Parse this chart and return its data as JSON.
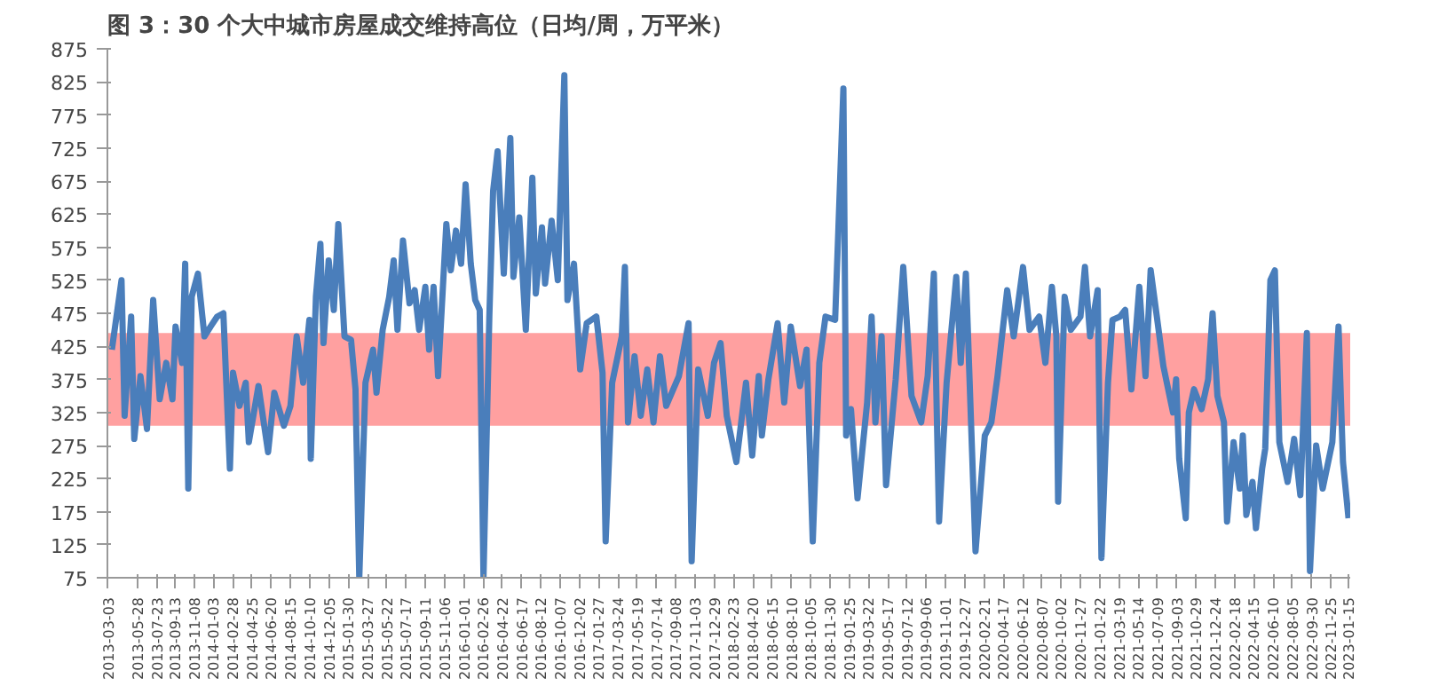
{
  "chart_data": {
    "type": "line",
    "title": "图 3：30 个大中城市房屋成交维持高位（日均/周，万平米）",
    "x": [
      "2013-03-14",
      "2013-04-11",
      "2013-04-20",
      "2013-05-09",
      "2013-05-18",
      "2013-06-05",
      "2013-06-24",
      "2013-07-12",
      "2013-07-31",
      "2013-08-19",
      "2013-09-06",
      "2013-09-15",
      "2013-10-04",
      "2013-10-13",
      "2013-10-22",
      "2013-11-01",
      "2013-11-19",
      "2013-12-08",
      "2013-12-26",
      "2014-01-14",
      "2014-02-01",
      "2014-02-20",
      "2014-03-01",
      "2014-03-20",
      "2014-04-07",
      "2014-04-16",
      "2014-05-14",
      "2014-06-11",
      "2014-06-29",
      "2014-07-27",
      "2014-08-15",
      "2014-09-02",
      "2014-09-21",
      "2014-10-09",
      "2014-10-13",
      "2014-10-28",
      "2014-11-10",
      "2014-11-19",
      "2014-12-04",
      "2014-12-19",
      "2015-01-01",
      "2015-01-19",
      "2015-02-07",
      "2015-02-20",
      "2015-03-03",
      "2015-03-21",
      "2015-04-12",
      "2015-04-22",
      "2015-05-10",
      "2015-05-29",
      "2015-06-11",
      "2015-06-22",
      "2015-07-08",
      "2015-07-27",
      "2015-08-11",
      "2015-08-24",
      "2015-09-11",
      "2015-09-22",
      "2015-10-05",
      "2015-10-18",
      "2015-11-11",
      "2015-11-24",
      "2015-12-09",
      "2015-12-24",
      "2016-01-06",
      "2016-01-21",
      "2016-02-03",
      "2016-02-16",
      "2016-02-27",
      "2016-03-15",
      "2016-03-26",
      "2016-04-08",
      "2016-04-26",
      "2016-05-15",
      "2016-05-24",
      "2016-06-10",
      "2016-06-29",
      "2016-07-18",
      "2016-07-28",
      "2016-08-15",
      "2016-08-24",
      "2016-09-12",
      "2016-09-30",
      "2016-10-19",
      "2016-10-28",
      "2016-11-16",
      "2016-12-04",
      "2016-12-23",
      "2017-01-20",
      "2017-02-07",
      "2017-02-16",
      "2017-03-07",
      "2017-04-04",
      "2017-04-13",
      "2017-04-22",
      "2017-05-11",
      "2017-05-29",
      "2017-06-17",
      "2017-07-05",
      "2017-07-24",
      "2017-08-11",
      "2017-09-17",
      "2017-10-15",
      "2017-10-24",
      "2017-11-12",
      "2017-12-10",
      "2017-12-28",
      "2018-01-16",
      "2018-02-03",
      "2018-03-03",
      "2018-03-31",
      "2018-04-18",
      "2018-05-07",
      "2018-05-16",
      "2018-06-04",
      "2018-07-01",
      "2018-07-20",
      "2018-08-08",
      "2018-09-04",
      "2018-09-23",
      "2018-10-11",
      "2018-10-30",
      "2018-11-17",
      "2018-12-15",
      "2019-01-08",
      "2019-01-16",
      "2019-01-30",
      "2019-02-18",
      "2019-03-18",
      "2019-03-31",
      "2019-04-11",
      "2019-04-29",
      "2019-05-12",
      "2019-06-09",
      "2019-07-01",
      "2019-07-25",
      "2019-08-22",
      "2019-09-10",
      "2019-09-28",
      "2019-10-13",
      "2019-11-04",
      "2019-12-02",
      "2019-12-15",
      "2019-12-30",
      "2020-01-27",
      "2020-02-23",
      "2020-03-13",
      "2020-03-31",
      "2020-04-28",
      "2020-05-17",
      "2020-06-13",
      "2020-07-02",
      "2020-07-30",
      "2020-08-17",
      "2020-09-05",
      "2020-09-18",
      "2020-09-23",
      "2020-10-12",
      "2020-10-30",
      "2020-11-27",
      "2020-12-10",
      "2020-12-25",
      "2021-01-16",
      "2021-01-27",
      "2021-02-15",
      "2021-02-28",
      "2021-03-22",
      "2021-04-06",
      "2021-04-24",
      "2021-05-17",
      "2021-06-04",
      "2021-06-19",
      "2021-07-07",
      "2021-07-26",
      "2021-08-23",
      "2021-09-01",
      "2021-09-10",
      "2021-09-29",
      "2021-10-08",
      "2021-10-23",
      "2021-11-14",
      "2021-12-03",
      "2021-12-16",
      "2021-12-30",
      "2022-01-18",
      "2022-01-27",
      "2022-02-15",
      "2022-03-05",
      "2022-03-14",
      "2022-03-24",
      "2022-04-11",
      "2022-04-21",
      "2022-05-09",
      "2022-05-18",
      "2022-06-02",
      "2022-06-15",
      "2022-06-28",
      "2022-07-22",
      "2022-08-10",
      "2022-08-28",
      "2022-09-16",
      "2022-09-25",
      "2022-10-13",
      "2022-11-01",
      "2022-11-29",
      "2022-12-17",
      "2022-12-30",
      "2023-01-15"
    ],
    "series": [
      {
        "color": "#4a7ebb",
        "values": [
          420,
          525,
          320,
          470,
          285,
          380,
          300,
          495,
          345,
          400,
          345,
          455,
          400,
          550,
          210,
          500,
          535,
          440,
          455,
          470,
          475,
          240,
          385,
          335,
          370,
          280,
          365,
          265,
          355,
          305,
          335,
          440,
          370,
          465,
          255,
          500,
          580,
          430,
          555,
          480,
          610,
          440,
          435,
          360,
          75,
          370,
          420,
          355,
          450,
          500,
          555,
          450,
          585,
          490,
          510,
          450,
          515,
          420,
          515,
          380,
          610,
          540,
          600,
          550,
          670,
          550,
          495,
          480,
          75,
          470,
          660,
          720,
          535,
          740,
          530,
          620,
          450,
          680,
          505,
          605,
          520,
          615,
          525,
          835,
          495,
          550,
          390,
          460,
          470,
          385,
          130,
          370,
          440,
          545,
          310,
          410,
          320,
          390,
          310,
          410,
          335,
          380,
          460,
          100,
          390,
          320,
          400,
          430,
          320,
          250,
          370,
          260,
          380,
          290,
          375,
          460,
          340,
          455,
          365,
          420,
          130,
          400,
          470,
          465,
          815,
          290,
          330,
          195,
          340,
          470,
          310,
          440,
          215,
          375,
          545,
          350,
          310,
          380,
          535,
          160,
          370,
          530,
          400,
          535,
          115,
          290,
          310,
          380,
          510,
          440,
          545,
          450,
          470,
          400,
          515,
          440,
          190,
          500,
          450,
          470,
          545,
          440,
          510,
          105,
          370,
          465,
          470,
          480,
          360,
          515,
          380,
          540,
          470,
          395,
          325,
          375,
          255,
          165,
          325,
          360,
          330,
          375,
          475,
          350,
          310,
          160,
          280,
          210,
          290,
          170,
          220,
          150,
          240,
          270,
          525,
          540,
          280,
          220,
          285,
          200,
          445,
          85,
          275,
          210,
          280,
          455,
          250,
          165
        ]
      }
    ],
    "xlim": [
      "2013-03-01",
      "2023-01-20"
    ],
    "xticks": [
      "2013-03-03",
      "2013-05-28",
      "2013-07-23",
      "2013-09-13",
      "2013-11-08",
      "2014-01-03",
      "2014-02-28",
      "2014-04-25",
      "2014-06-20",
      "2014-08-15",
      "2014-10-10",
      "2014-12-05",
      "2015-01-30",
      "2015-03-27",
      "2015-05-22",
      "2015-07-17",
      "2015-09-11",
      "2015-11-06",
      "2016-01-01",
      "2016-02-26",
      "2016-04-22",
      "2016-06-17",
      "2016-08-12",
      "2016-10-07",
      "2016-12-02",
      "2017-01-27",
      "2017-03-24",
      "2017-05-19",
      "2017-07-14",
      "2017-09-08",
      "2017-11-03",
      "2017-12-29",
      "2018-02-23",
      "2018-04-20",
      "2018-06-15",
      "2018-08-10",
      "2018-10-05",
      "2018-11-30",
      "2019-01-25",
      "2019-03-22",
      "2019-05-17",
      "2019-07-12",
      "2019-09-06",
      "2019-11-01",
      "2019-12-27",
      "2020-02-21",
      "2020-04-17",
      "2020-06-12",
      "2020-08-07",
      "2020-10-02",
      "2020-11-27",
      "2021-01-22",
      "2021-03-19",
      "2021-05-14",
      "2021-07-09",
      "2021-09-03",
      "2021-10-29",
      "2021-12-24",
      "2022-02-18",
      "2022-04-15",
      "2022-06-10",
      "2022-08-05",
      "2022-09-30",
      "2022-11-25",
      "2023-01-15"
    ],
    "ylim": [
      75,
      875
    ],
    "yticks": [
      75,
      125,
      175,
      225,
      275,
      325,
      375,
      425,
      475,
      525,
      575,
      625,
      675,
      725,
      775,
      825,
      875
    ],
    "bands": [
      {
        "axis": "y",
        "from": 305,
        "to": 445,
        "color": "#ff8080"
      }
    ],
    "grid": false,
    "marker": "none",
    "line_style": "solid"
  }
}
